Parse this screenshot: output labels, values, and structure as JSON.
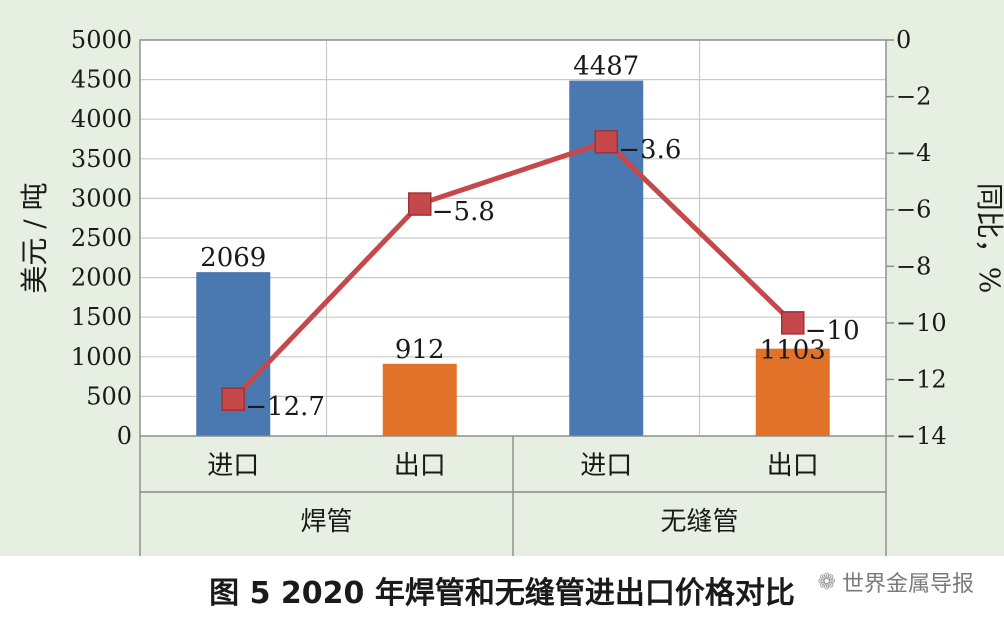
{
  "chart_data": {
    "type": "bar+line",
    "groups": [
      "焊管",
      "无缝管"
    ],
    "categories": [
      "进口",
      "出口",
      "进口",
      "出口"
    ],
    "bar_series": {
      "values": [
        2069,
        912,
        4487,
        1103
      ],
      "colors": [
        "#4a78b0",
        "#e0722a",
        "#4a78b0",
        "#e0722a"
      ]
    },
    "line_series": {
      "values": [
        -12.7,
        -5.8,
        -3.6,
        -10
      ],
      "labels": [
        "−12.7",
        "−5.8",
        "−3.6",
        "−10"
      ],
      "color": "#c5484b",
      "marker_color": "#c5484b"
    },
    "y_left": {
      "label": "美元 / 吨",
      "min": 0,
      "max": 5000,
      "ticks": [
        0,
        500,
        1000,
        1500,
        2000,
        2500,
        3000,
        3500,
        4000,
        4500,
        5000
      ],
      "tick_labels": [
        "0",
        "500",
        "1000",
        "1500",
        "2000",
        "2500",
        "3000",
        "3500",
        "4000",
        "4500",
        "5000"
      ]
    },
    "y_right": {
      "label": "同比，%",
      "min": -14,
      "max": 0,
      "ticks": [
        0,
        -2,
        -4,
        -6,
        -8,
        -10,
        -12,
        -14
      ],
      "tick_labels": [
        "0",
        "−2",
        "−4",
        "−6",
        "−8",
        "−10",
        "−12",
        "−14"
      ]
    },
    "grid": true
  },
  "caption": "图 5  2020 年焊管和无缝管进出口价格对比",
  "watermark": "世界金属导报"
}
